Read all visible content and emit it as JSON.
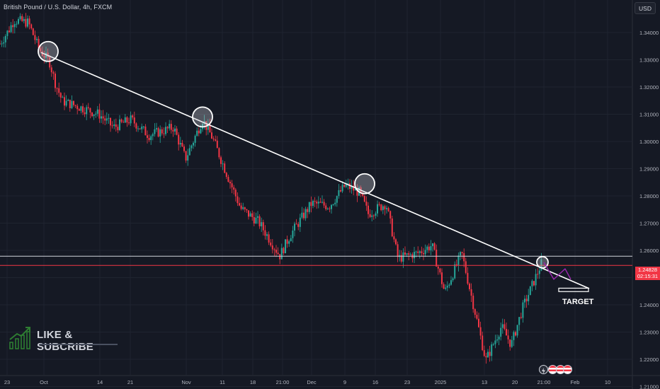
{
  "header": {
    "symbol_title": "British Pound / U.S. Dollar, 4h, FXCM",
    "currency_button": "USD"
  },
  "price_tag": {
    "price": "1.24828",
    "countdown": "02:15:31"
  },
  "annotations": {
    "target_label": "TARGET",
    "watermark_text": "LIKE & SUBCRIBE"
  },
  "colors": {
    "background": "#151924",
    "up": "#26a69a",
    "down": "#f23645",
    "grid": "#1f2430",
    "axis_text": "#b2b5be",
    "trendline": "#ffffff",
    "projection": "#9c27b0"
  },
  "icons": [
    "lightning-icon",
    "us-flag-icon",
    "us-flag-icon",
    "us-flag-icon"
  ],
  "chart_data": {
    "type": "candlestick",
    "y_axis": {
      "ticks": [
        "1.34000",
        "1.33000",
        "1.32000",
        "1.31000",
        "1.30000",
        "1.29000",
        "1.28000",
        "1.27000",
        "1.26000",
        "1.25000",
        "1.24000",
        "1.23000",
        "1.22000",
        "1.21000"
      ],
      "range": [
        1.2065,
        1.3475
      ]
    },
    "x_axis": {
      "ticks": [
        "23",
        "Oct",
        "14",
        "21",
        "Nov",
        "11",
        "18",
        "21:00",
        "Dec",
        "9",
        "16",
        "23",
        "2025",
        "13",
        "20",
        "21:00",
        "Feb",
        "10"
      ]
    },
    "waypoints": [
      [
        0,
        1.333
      ],
      [
        12,
        1.338
      ],
      [
        20,
        1.342
      ],
      [
        40,
        1.341
      ],
      [
        55,
        1.331
      ],
      [
        70,
        1.326
      ],
      [
        78,
        1.318
      ],
      [
        88,
        1.311
      ],
      [
        110,
        1.309
      ],
      [
        140,
        1.306
      ],
      [
        160,
        1.301
      ],
      [
        185,
        1.304
      ],
      [
        210,
        1.298
      ],
      [
        245,
        1.301
      ],
      [
        262,
        1.289
      ],
      [
        286,
        1.304
      ],
      [
        300,
        1.297
      ],
      [
        325,
        1.28
      ],
      [
        340,
        1.27
      ],
      [
        365,
        1.265
      ],
      [
        395,
        1.252
      ],
      [
        410,
        1.26
      ],
      [
        440,
        1.272
      ],
      [
        465,
        1.271
      ],
      [
        488,
        1.279
      ],
      [
        508,
        1.276
      ],
      [
        520,
        1.268
      ],
      [
        545,
        1.272
      ],
      [
        562,
        1.251
      ],
      [
        590,
        1.253
      ],
      [
        610,
        1.256
      ],
      [
        628,
        1.238
      ],
      [
        652,
        1.253
      ],
      [
        672,
        1.229
      ],
      [
        686,
        1.212
      ],
      [
        708,
        1.225
      ],
      [
        722,
        1.218
      ],
      [
        738,
        1.232
      ],
      [
        752,
        1.241
      ],
      [
        766,
        1.25
      ]
    ],
    "horizontal_levels": [
      1.2518,
      1.2483
    ],
    "trendline": {
      "x": [
        58,
        832
      ],
      "y": [
        1.3296,
        1.2395
      ]
    },
    "highlight_points": [
      [
        68,
        1.33
      ],
      [
        286,
        1.305
      ],
      [
        515,
        1.2795
      ],
      [
        766,
        1.2495
      ]
    ],
    "projection_path": [
      [
        768,
        1.2495
      ],
      [
        782,
        1.243
      ],
      [
        798,
        1.247
      ],
      [
        806,
        1.243
      ]
    ],
    "target_zone": {
      "x": [
        789,
        831
      ],
      "y": [
        1.2396,
        1.2383
      ]
    }
  }
}
